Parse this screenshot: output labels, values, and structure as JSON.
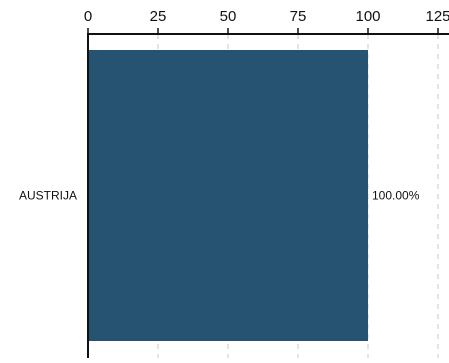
{
  "chart_data": {
    "type": "bar",
    "orientation": "horizontal",
    "categories": [
      "AUSTRIJA"
    ],
    "values": [
      100
    ],
    "data_labels": [
      "100.00%"
    ],
    "x_axis_position": "top",
    "xlim": [
      0,
      125
    ],
    "xticks": [
      0,
      25,
      50,
      75,
      100,
      125
    ],
    "xtick_labels": [
      "0",
      "25",
      "50",
      "75",
      "100",
      "125"
    ],
    "grid": "vertical dashed",
    "legend": "none",
    "title": "",
    "xlabel": "",
    "ylabel": "",
    "colors": {
      "bar": "#275372",
      "grid": "#c8c8c8",
      "axis": "#111111",
      "text": "#111111"
    }
  }
}
